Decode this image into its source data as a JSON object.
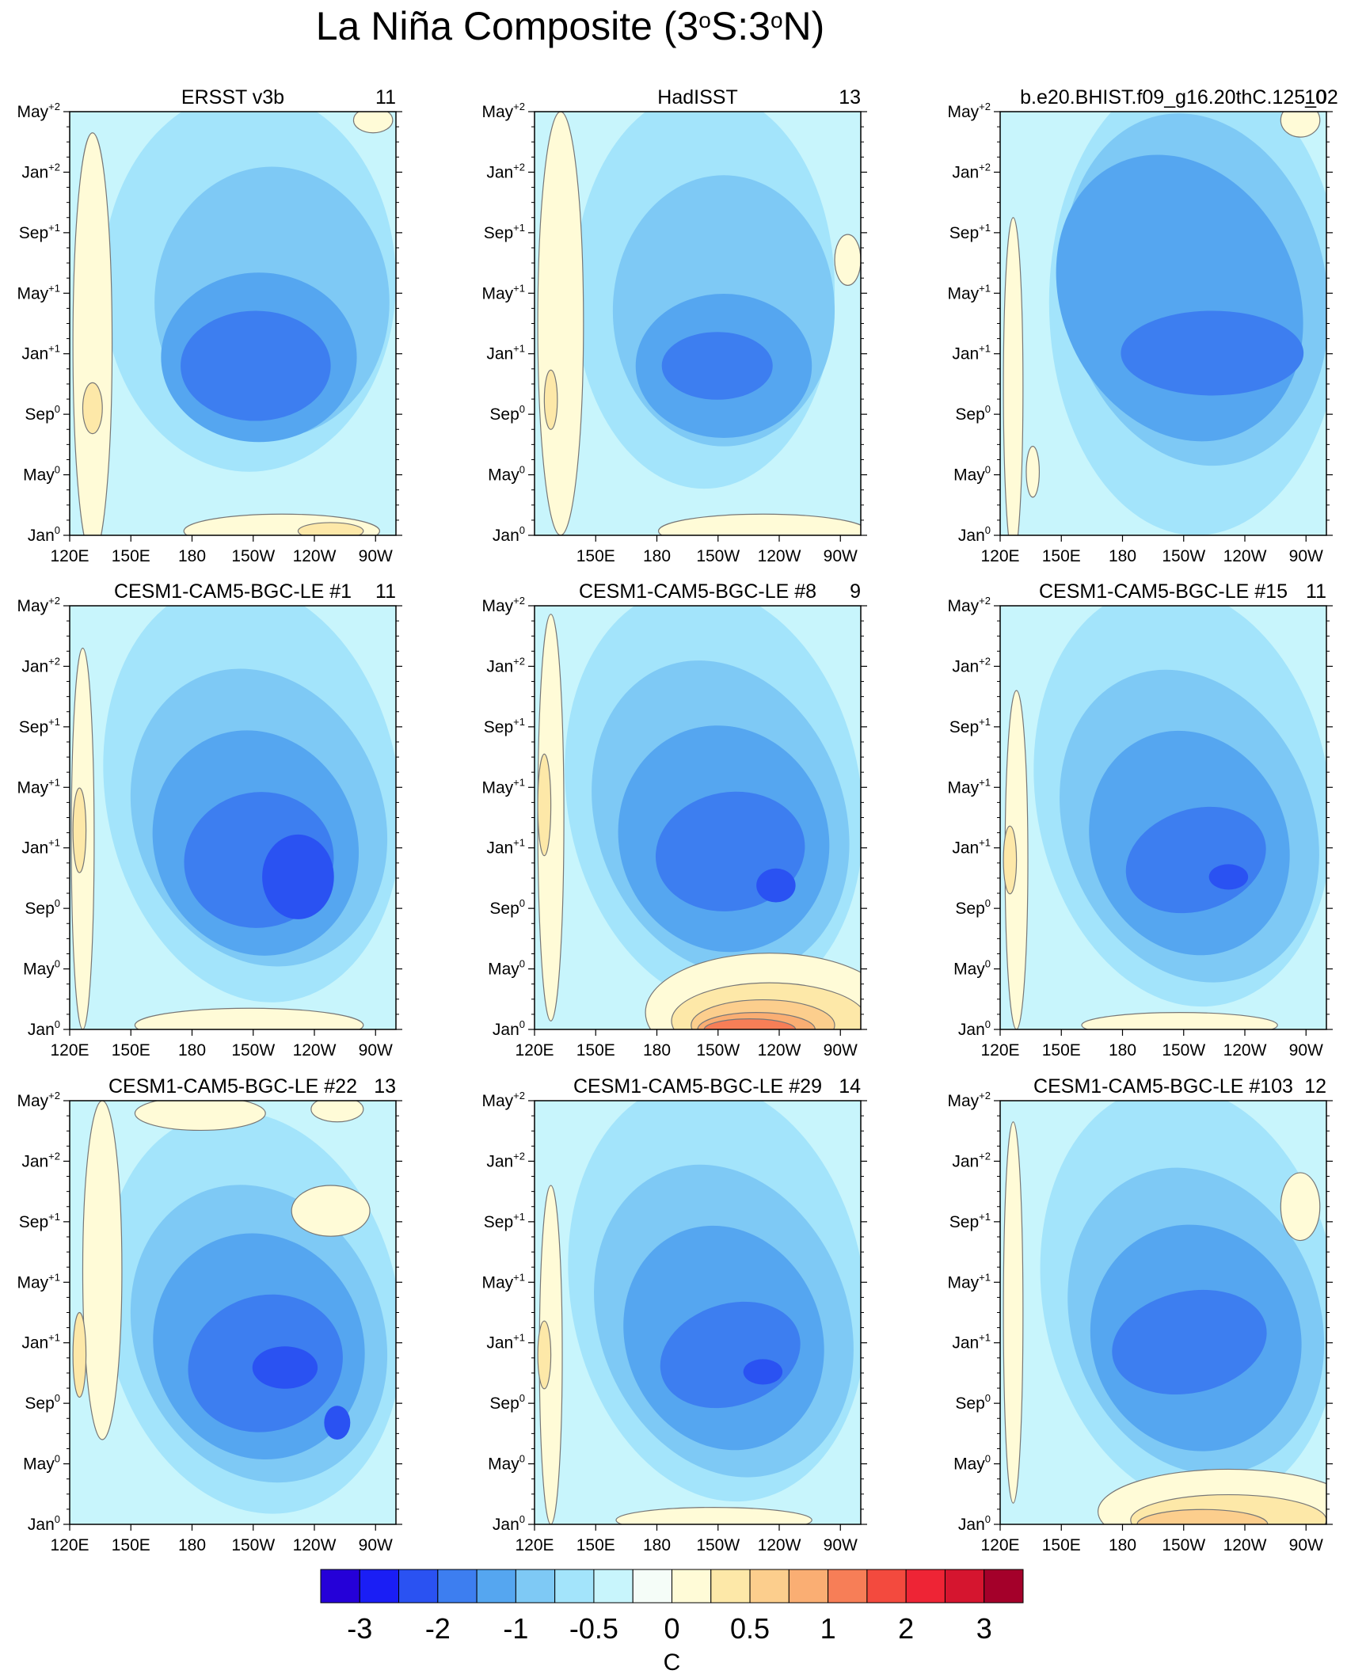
{
  "chart_data": {
    "type": "heatmap",
    "title_parts": [
      "La Niña Composite (3",
      "o",
      "S:3",
      "o",
      "N)"
    ],
    "colorbar": {
      "colors": [
        "#2500d8",
        "#1a1ef5",
        "#2a52f2",
        "#3d7ef0",
        "#55a6f0",
        "#7ec9f5",
        "#a3e4fb",
        "#c8f5fc",
        "#f5fdf8",
        "#fffbd7",
        "#fde8a8",
        "#fcce8d",
        "#faae73",
        "#f77e57",
        "#f34a3e",
        "#ee2435",
        "#d5152f",
        "#a4002a"
      ],
      "labels": [
        "-3",
        "-2",
        "-1",
        "-0.5",
        "0",
        "0.5",
        "1",
        "2",
        "3"
      ],
      "unit": "C"
    },
    "y_axis": {
      "label_bases": [
        "Jan",
        "May",
        "Sep",
        "Jan",
        "May",
        "Sep",
        "Jan",
        "May"
      ],
      "label_sups": [
        "0",
        "0",
        "0",
        "+1",
        "+1",
        "+1",
        "+2",
        "+2"
      ]
    },
    "x_axis": {
      "labels": [
        "120E",
        "150E",
        "180",
        "150W",
        "120W",
        "90W"
      ]
    },
    "panels": [
      {
        "name": "ERSST v3b",
        "count": "11",
        "scheme": "obs-ersst",
        "xlabels": [
          "120E",
          "150E",
          "180",
          "150W",
          "120W",
          "90W"
        ]
      },
      {
        "name": "HadISST",
        "count": "13",
        "scheme": "obs-hadisst",
        "xlabels": [
          "150E",
          "180",
          "150W",
          "120W",
          "90W"
        ]
      },
      {
        "name": "b.e20.BHIST.f09_g16.20thC.125_02",
        "count": "10",
        "scheme": "model-warm",
        "xlabels": [
          "120E",
          "150E",
          "180",
          "150W",
          "120W",
          "90W"
        ]
      },
      {
        "name": "CESM1-CAM5-BGC-LE #1",
        "count": "11",
        "scheme": "le-strong",
        "xlabels": [
          "120E",
          "150E",
          "180",
          "150W",
          "120W",
          "90W"
        ]
      },
      {
        "name": "CESM1-CAM5-BGC-LE #8",
        "count": "9",
        "scheme": "le-warmstart",
        "xlabels": [
          "120E",
          "150E",
          "180",
          "150W",
          "120W",
          "90W"
        ]
      },
      {
        "name": "CESM1-CAM5-BGC-LE #15",
        "count": "11",
        "scheme": "le-standard",
        "xlabels": [
          "120E",
          "150E",
          "180",
          "150W",
          "120W",
          "90W"
        ]
      },
      {
        "name": "CESM1-CAM5-BGC-LE #22",
        "count": "13",
        "scheme": "le-strong2",
        "xlabels": [
          "120E",
          "150E",
          "180",
          "150W",
          "120W",
          "90W"
        ]
      },
      {
        "name": "CESM1-CAM5-BGC-LE #29",
        "count": "14",
        "scheme": "le-standard",
        "xlabels": [
          "120E",
          "150E",
          "180",
          "150W",
          "120W",
          "90W"
        ]
      },
      {
        "name": "CESM1-CAM5-BGC-LE #103",
        "count": "12",
        "scheme": "le-warmstart2",
        "xlabels": [
          "120E",
          "150E",
          "180",
          "150W",
          "120W",
          "90W"
        ]
      }
    ]
  }
}
